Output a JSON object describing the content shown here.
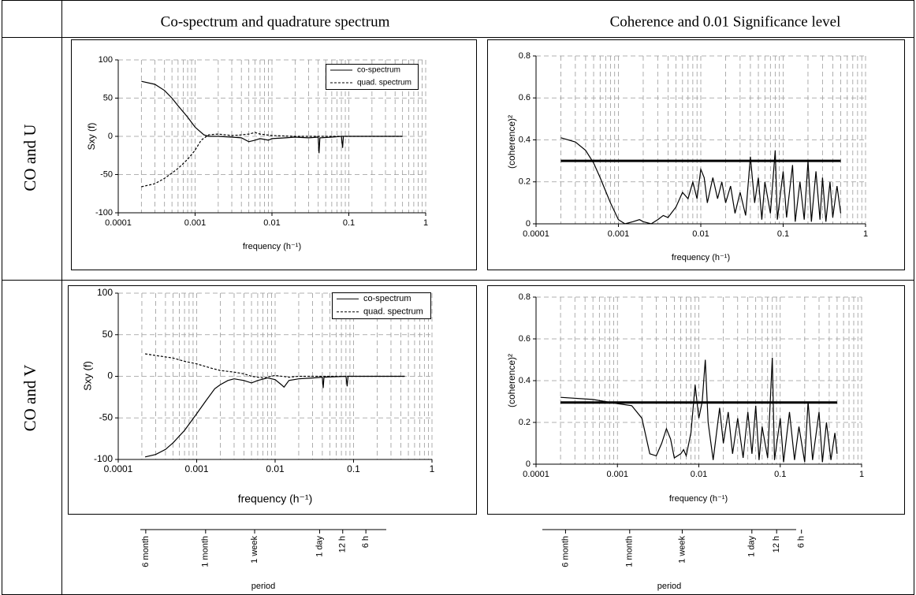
{
  "header": {
    "titles": [
      "Co-spectrum and quadrature spectrum",
      "Coherence and 0.01 Significance level"
    ]
  },
  "rows": [
    "CO and U",
    "CO and V"
  ],
  "chart_data": [
    {
      "type": "line",
      "ylabel": "Sxy (f)",
      "xlabel": "frequency (h⁻¹)",
      "log_x": true,
      "grid": true,
      "legend": "upper right",
      "xlim": [
        0.0001,
        1
      ],
      "xticks": [
        0.0001,
        0.001,
        0.01,
        0.1,
        1
      ],
      "ylim": [
        -100,
        100
      ],
      "yticks": [
        -100,
        -50,
        0,
        50,
        100
      ],
      "series": [
        {
          "name": "co-spectrum",
          "color": "#000000",
          "linestyle": "solid",
          "x": [
            0.0002,
            0.0003,
            0.0004,
            0.0005,
            0.0006,
            0.0008,
            0.001,
            0.0013,
            0.0015,
            0.002,
            0.003,
            0.004,
            0.005,
            0.006,
            0.007,
            0.009,
            0.01,
            0.015,
            0.02,
            0.03,
            0.04,
            0.041,
            0.042,
            0.06,
            0.08,
            0.083,
            0.085,
            0.15,
            0.3,
            0.5
          ],
          "values": [
            72,
            68,
            60,
            50,
            40,
            25,
            12,
            2,
            0,
            0,
            -1,
            -2,
            -7,
            -5,
            -3,
            -5,
            -3,
            -2,
            -1,
            -2,
            -1,
            -22,
            -2,
            -1,
            0,
            -15,
            0,
            0,
            0,
            0
          ]
        },
        {
          "name": "quad. spectrum",
          "color": "#000000",
          "linestyle": "dashed",
          "x": [
            0.0002,
            0.0003,
            0.0004,
            0.0005,
            0.0006,
            0.0008,
            0.001,
            0.0012,
            0.0015,
            0.002,
            0.003,
            0.004,
            0.005,
            0.006,
            0.007,
            0.01,
            0.02,
            0.05,
            0.1,
            0.5
          ],
          "values": [
            -66,
            -62,
            -55,
            -48,
            -42,
            -30,
            -18,
            -5,
            2,
            3,
            1,
            2,
            3,
            5,
            3,
            1,
            0,
            0,
            0,
            0
          ]
        }
      ]
    },
    {
      "type": "line",
      "ylabel": "(coherence)²",
      "xlabel": "frequency (h⁻¹)",
      "log_x": true,
      "grid": true,
      "xlim": [
        0.0001,
        1
      ],
      "xticks": [
        0.0001,
        0.001,
        0.01,
        0.1,
        1
      ],
      "ylim": [
        0,
        0.8
      ],
      "yticks": [
        0,
        0.2,
        0.4,
        0.6,
        0.8
      ],
      "series": [
        {
          "color": "#000000",
          "linestyle": "solid",
          "x": [
            0.0002,
            0.0003,
            0.0004,
            0.0005,
            0.0006,
            0.0008,
            0.001,
            0.0012,
            0.0015,
            0.0018,
            0.002,
            0.0025,
            0.003,
            0.0035,
            0.004,
            0.005,
            0.006,
            0.007,
            0.008,
            0.009,
            0.01,
            0.011,
            0.012,
            0.014,
            0.016,
            0.018,
            0.02,
            0.023,
            0.026,
            0.03,
            0.035,
            0.04,
            0.045,
            0.05,
            0.055,
            0.06,
            0.07,
            0.08,
            0.085,
            0.1,
            0.11,
            0.13,
            0.14,
            0.16,
            0.18,
            0.2,
            0.22,
            0.25,
            0.28,
            0.3,
            0.33,
            0.37,
            0.4,
            0.45,
            0.5
          ],
          "values": [
            0.41,
            0.39,
            0.35,
            0.29,
            0.22,
            0.1,
            0.02,
            0,
            0.01,
            0.02,
            0.01,
            0,
            0.02,
            0.04,
            0.03,
            0.08,
            0.15,
            0.12,
            0.2,
            0.12,
            0.26,
            0.22,
            0.1,
            0.22,
            0.12,
            0.2,
            0.1,
            0.18,
            0.05,
            0.15,
            0.04,
            0.32,
            0.1,
            0.22,
            0.02,
            0.2,
            0.05,
            0.35,
            0.02,
            0.25,
            0.03,
            0.28,
            0.01,
            0.2,
            0.02,
            0.3,
            0.01,
            0.25,
            0.02,
            0.22,
            0.01,
            0.2,
            0.03,
            0.18,
            0.05
          ]
        },
        {
          "color": "#000000",
          "linestyle": "thick",
          "x": [
            0.0002,
            0.5
          ],
          "values": [
            0.3,
            0.3
          ]
        }
      ]
    },
    {
      "type": "line",
      "ylabel": "Sxy (f)",
      "xlabel": "frequency (h⁻¹)",
      "log_x": true,
      "grid": true,
      "legend": "upper right",
      "xlim": [
        0.0001,
        1
      ],
      "xticks": [
        0.0001,
        0.001,
        0.01,
        0.1,
        1
      ],
      "ylim": [
        -100,
        100
      ],
      "yticks": [
        -100,
        -50,
        0,
        50,
        100
      ],
      "series": [
        {
          "name": "co-spectrum",
          "color": "#000000",
          "linestyle": "solid",
          "x": [
            0.00022,
            0.0003,
            0.0004,
            0.0005,
            0.0007,
            0.001,
            0.0013,
            0.0017,
            0.002,
            0.0025,
            0.003,
            0.004,
            0.005,
            0.006,
            0.008,
            0.01,
            0.012,
            0.013,
            0.015,
            0.02,
            0.03,
            0.04,
            0.041,
            0.042,
            0.08,
            0.083,
            0.085,
            0.2,
            0.45
          ],
          "values": [
            -97,
            -94,
            -88,
            -80,
            -65,
            -45,
            -30,
            -15,
            -10,
            -5,
            -3,
            -5,
            -8,
            -5,
            -2,
            -4,
            -10,
            -13,
            -5,
            -3,
            -2,
            -1,
            -14,
            -1,
            0,
            -12,
            0,
            0,
            0
          ]
        },
        {
          "name": "quad. spectrum",
          "color": "#000000",
          "linestyle": "dashed",
          "x": [
            0.00022,
            0.0003,
            0.0005,
            0.0007,
            0.001,
            0.0015,
            0.002,
            0.003,
            0.004,
            0.005,
            0.007,
            0.01,
            0.015,
            0.02,
            0.05,
            0.45
          ],
          "values": [
            27,
            25,
            22,
            18,
            15,
            10,
            7,
            5,
            3,
            0,
            -2,
            1,
            -1,
            0,
            0,
            0
          ]
        }
      ]
    },
    {
      "type": "line",
      "ylabel": "(coherence)²",
      "xlabel": "frequency (h⁻¹)",
      "log_x": true,
      "grid": true,
      "xlim": [
        0.0001,
        1
      ],
      "xticks": [
        0.0001,
        0.001,
        0.01,
        0.1,
        1
      ],
      "ylim": [
        0,
        0.8
      ],
      "yticks": [
        0,
        0.2,
        0.4,
        0.6,
        0.8
      ],
      "series": [
        {
          "color": "#000000",
          "linestyle": "solid",
          "x": [
            0.0002,
            0.0005,
            0.001,
            0.0015,
            0.002,
            0.0025,
            0.003,
            0.0035,
            0.004,
            0.0045,
            0.005,
            0.006,
            0.0065,
            0.007,
            0.008,
            0.009,
            0.01,
            0.011,
            0.012,
            0.013,
            0.015,
            0.018,
            0.02,
            0.023,
            0.026,
            0.03,
            0.035,
            0.04,
            0.045,
            0.05,
            0.055,
            0.06,
            0.07,
            0.08,
            0.085,
            0.1,
            0.11,
            0.13,
            0.15,
            0.17,
            0.2,
            0.22,
            0.25,
            0.3,
            0.33,
            0.37,
            0.42,
            0.47,
            0.5
          ],
          "values": [
            0.32,
            0.31,
            0.29,
            0.28,
            0.22,
            0.05,
            0.04,
            0.1,
            0.17,
            0.12,
            0.03,
            0.05,
            0.07,
            0.04,
            0.15,
            0.38,
            0.22,
            0.3,
            0.5,
            0.2,
            0.02,
            0.27,
            0.1,
            0.25,
            0.05,
            0.22,
            0.03,
            0.25,
            0.05,
            0.28,
            0.02,
            0.18,
            0.03,
            0.51,
            0.02,
            0.22,
            0.01,
            0.25,
            0.02,
            0.18,
            0.01,
            0.3,
            0.02,
            0.25,
            0.01,
            0.2,
            0.02,
            0.15,
            0.05
          ]
        },
        {
          "color": "#000000",
          "linestyle": "thick",
          "x": [
            0.0002,
            0.5
          ],
          "values": [
            0.295,
            0.295
          ]
        }
      ]
    },
    {
      "type": "period-axis",
      "xlabel": "period",
      "log_x": true,
      "xlim": [
        0.0001,
        1
      ],
      "xticks": [
        {
          "value": 0.000228,
          "label": "6 month"
        },
        {
          "value": 0.00137,
          "label": "1 month"
        },
        {
          "value": 0.00595,
          "label": "1 week"
        },
        {
          "value": 0.0417,
          "label": "1 day"
        },
        {
          "value": 0.0833,
          "label": "12 h"
        },
        {
          "value": 0.1667,
          "label": "6 h"
        }
      ]
    },
    {
      "type": "period-axis",
      "xlabel": "period",
      "log_x": true,
      "xlim": [
        0.0001,
        1
      ],
      "xticks": [
        {
          "value": 0.000228,
          "label": "6 month"
        },
        {
          "value": 0.00137,
          "label": "1 month"
        },
        {
          "value": 0.00595,
          "label": "1 week"
        },
        {
          "value": 0.0417,
          "label": "1 day"
        },
        {
          "value": 0.0833,
          "label": "12 h"
        },
        {
          "value": 0.1667,
          "label": "6 h"
        }
      ]
    }
  ]
}
